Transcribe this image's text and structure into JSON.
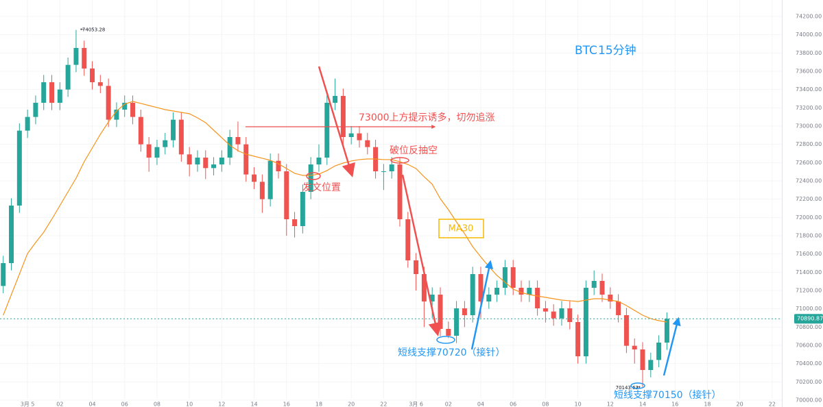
{
  "chart_data": {
    "type": "candlestick",
    "title": "BTC",
    "subtitle": "15分钟",
    "annotations": [
      "73000上方提示诱多，切勿追涨",
      "破位反抽空",
      "发文位置",
      "MA30",
      "短线支撑70720（接针）",
      "短线支撑70150（接针）"
    ],
    "up_color": "#26a69a",
    "down_color": "#ef5350",
    "x": [
      -1.5,
      -1,
      -0.5,
      0,
      0.5,
      1,
      1.5,
      2,
      2.5,
      3,
      3.5,
      4,
      4.5,
      5,
      5.5,
      6,
      6.5,
      7,
      7.5,
      8,
      8.5,
      9,
      9.5,
      10,
      10.5,
      11,
      11.5,
      12,
      12.5,
      13,
      13.5,
      14,
      14.5,
      15,
      15.5,
      16,
      16.5,
      17,
      17.5,
      18,
      18.5,
      19,
      19.5,
      20,
      20.5,
      21,
      21.5,
      22,
      22.5,
      23,
      23.5,
      24,
      24.5,
      25,
      25.5,
      26,
      26.5,
      27,
      27.5,
      28,
      28.5,
      29,
      29.5,
      30,
      30.5,
      31,
      31.5,
      32,
      32.5,
      33,
      33.5,
      34,
      34.5,
      35,
      35.5,
      36,
      36.5,
      37,
      37.5,
      38,
      38.5,
      39,
      39.5
    ],
    "open": [
      71250,
      71500,
      72130,
      72950,
      73100,
      73255,
      73480,
      73255,
      73400,
      73670,
      73855,
      73630,
      73480,
      73440,
      73070,
      73180,
      73255,
      73100,
      72800,
      72655,
      72770,
      72845,
      73070,
      72690,
      72580,
      72655,
      72540,
      72580,
      72655,
      72880,
      72800,
      72470,
      72390,
      72200,
      72620,
      72505,
      71980,
      71905,
      72280,
      72580,
      72655,
      73255,
      73330,
      72880,
      72920,
      72845,
      72770,
      72505,
      72505,
      72580,
      71980,
      71530,
      71380,
      71080,
      71155,
      70780,
      70705,
      71005,
      70930,
      71380,
      71080,
      71155,
      71230,
      71455,
      71230,
      71155,
      71230,
      71005,
      70970,
      70895,
      71005,
      70855,
      70480,
      71230,
      71305,
      71155,
      71080,
      70930,
      70595,
      70555,
      70330,
      70440,
      70630
    ],
    "high": [
      71580,
      72210,
      73030,
      73180,
      73335,
      73560,
      73560,
      73480,
      73750,
      74053.28,
      73935,
      73710,
      73560,
      73520,
      73260,
      73335,
      73335,
      73180,
      72880,
      72850,
      72925,
      73150,
      73150,
      72770,
      72735,
      72735,
      72660,
      72735,
      72960,
      73050,
      72880,
      72550,
      72470,
      72700,
      72700,
      72585,
      72060,
      72360,
      72660,
      72800,
      73335,
      73520,
      73410,
      73000,
      73000,
      72925,
      72850,
      72585,
      72660,
      72660,
      72060,
      71610,
      71460,
      71235,
      71235,
      70860,
      71085,
      71085,
      71460,
      71460,
      71235,
      71310,
      71535,
      71535,
      71310,
      71310,
      71310,
      71085,
      71050,
      71085,
      71085,
      70935,
      71310,
      71420,
      71385,
      71235,
      71160,
      71010,
      70675,
      70635,
      70520,
      70710,
      70960
    ],
    "low": [
      71170,
      71420,
      72050,
      72870,
      73020,
      73175,
      73175,
      73175,
      73320,
      73590,
      73550,
      73400,
      73360,
      72990,
      72990,
      73100,
      73020,
      72720,
      72500,
      72575,
      72690,
      72765,
      72610,
      72450,
      72500,
      72420,
      72460,
      72500,
      72575,
      72720,
      72390,
      72310,
      72050,
      72120,
      72425,
      71800,
      71780,
      71825,
      72200,
      72500,
      72575,
      73175,
      72800,
      72800,
      72765,
      72690,
      72425,
      72300,
      72425,
      71900,
      71450,
      71200,
      70800,
      70900,
      70700,
      70680,
      70625,
      70800,
      70850,
      70900,
      71000,
      71075,
      71150,
      71150,
      71075,
      71075,
      70925,
      70850,
      70815,
      70815,
      70775,
      70400,
      70400,
      71150,
      71075,
      71000,
      70850,
      70515,
      70400,
      70143.63,
      70250,
      70360,
      70550
    ],
    "close": [
      71500,
      72130,
      72950,
      73100,
      73255,
      73480,
      73255,
      73400,
      73670,
      73855,
      73630,
      73480,
      73440,
      73070,
      73180,
      73255,
      73100,
      72800,
      72655,
      72770,
      72845,
      73070,
      72690,
      72580,
      72655,
      72540,
      72580,
      72655,
      72880,
      72800,
      72470,
      72390,
      72200,
      72620,
      72505,
      71980,
      71905,
      72280,
      72580,
      72655,
      73255,
      73330,
      72880,
      72920,
      72845,
      72770,
      72505,
      72505,
      72580,
      71980,
      71530,
      71380,
      71080,
      71155,
      70780,
      70705,
      71005,
      70930,
      71380,
      71080,
      71155,
      71230,
      71455,
      71230,
      71155,
      71230,
      71005,
      70970,
      70895,
      71005,
      70855,
      70480,
      71230,
      71305,
      71155,
      71080,
      70930,
      70595,
      70555,
      70330,
      70440,
      70630,
      70890.87
    ],
    "ma_line": {
      "color": "#f7931a",
      "values": [
        70930,
        71155,
        71380,
        71605,
        71725,
        71838,
        71980,
        72130,
        72280,
        72430,
        72610,
        72760,
        72910,
        73045,
        73165,
        73240,
        73270,
        73248,
        73225,
        73203,
        73180,
        73165,
        73150,
        73135,
        73090,
        73038,
        72955,
        72873,
        72790,
        72730,
        72693,
        72670,
        72648,
        72625,
        72588,
        72535,
        72483,
        72460,
        72460,
        72475,
        72513,
        72565,
        72595,
        72618,
        72633,
        72640,
        72640,
        72633,
        72633,
        72610,
        72580,
        72535,
        72445,
        72363,
        72205,
        72085,
        71950,
        71822,
        71680,
        71568,
        71462,
        71365,
        71290,
        71215,
        71178,
        71155,
        71140,
        71125,
        71110,
        71095,
        71088,
        71080,
        71095,
        71110,
        71110,
        71095,
        71080,
        71035,
        70982,
        70930,
        70892,
        70870,
        70855
      ]
    },
    "last_price": 70890.87,
    "xlim": [
      -1.7,
      46.6
    ],
    "ylim": [
      69925,
      74380
    ],
    "xticks": [
      {
        "value": 0,
        "label": "3月 5"
      },
      {
        "value": 2,
        "label": "02"
      },
      {
        "value": 4,
        "label": "04"
      },
      {
        "value": 6,
        "label": "06"
      },
      {
        "value": 8,
        "label": "08"
      },
      10,
      12,
      14,
      16,
      18,
      20,
      22,
      {
        "value": 24,
        "label": "3月 6"
      },
      {
        "value": 26,
        "label": "02"
      },
      {
        "value": 28,
        "label": "04"
      },
      {
        "value": 30,
        "label": "06"
      },
      {
        "value": 32,
        "label": "08"
      },
      {
        "value": 34,
        "label": "10"
      },
      {
        "value": 36,
        "label": "12"
      },
      {
        "value": 38,
        "label": "14"
      },
      {
        "value": 40,
        "label": "16"
      },
      {
        "value": 42,
        "label": "18"
      },
      {
        "value": 44,
        "label": "20"
      },
      {
        "value": 46,
        "label": "22"
      }
    ],
    "yticks": [
      {
        "value": 70000,
        "label": "70000.00"
      },
      {
        "value": 70200,
        "label": "70200.00"
      },
      {
        "value": 70400,
        "label": "70400.00"
      },
      {
        "value": 70600,
        "label": "70600.00"
      },
      {
        "value": 70800,
        "label": "70800.00"
      },
      {
        "value": 71000,
        "label": "71000.00"
      },
      {
        "value": 71200,
        "label": "71200.00"
      },
      {
        "value": 71400,
        "label": "71400.00"
      },
      {
        "value": 71600,
        "label": "71600.00"
      },
      {
        "value": 71800,
        "label": "71800.00"
      },
      {
        "value": 72000,
        "label": "72000.00"
      },
      {
        "value": 72200,
        "label": "72200.00"
      },
      {
        "value": 72400,
        "label": "72400.00"
      },
      {
        "value": 72600,
        "label": "72600.00"
      },
      {
        "value": 72800,
        "label": "72800.00"
      },
      {
        "value": 73000,
        "label": "73000.00"
      },
      {
        "value": 73200,
        "label": "73200.00"
      },
      {
        "value": 73400,
        "label": "73400.00"
      },
      {
        "value": 73600,
        "label": "73600.00"
      },
      {
        "value": 73800,
        "label": "73800.00"
      },
      {
        "value": 74000,
        "label": "74000.00"
      },
      {
        "value": 74200,
        "label": "74200.00"
      }
    ],
    "grid": true
  }
}
